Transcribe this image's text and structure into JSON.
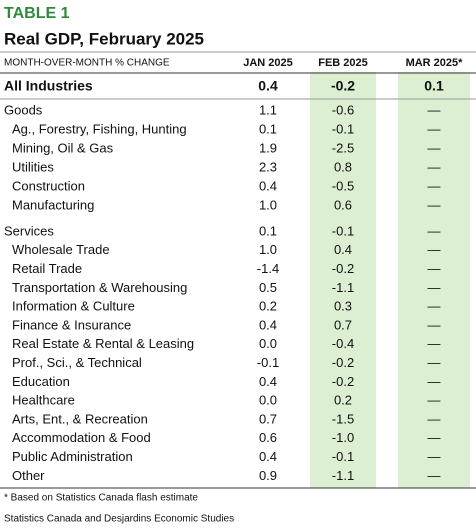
{
  "header": {
    "label": "TABLE 1",
    "title": "Real GDP, February 2025"
  },
  "table": {
    "columns": [
      "MONTH-OVER-MONTH % CHANGE",
      "JAN 2025",
      "FEB 2025",
      "MAR 2025*"
    ],
    "total": [
      "All Industries",
      "0.4",
      "-0.2",
      "0.1"
    ],
    "groups": [
      {
        "row": [
          "Goods",
          "1.1",
          "-0.6",
          "—"
        ],
        "rows": [
          [
            "Ag., Forestry, Fishing, Hunting",
            "0.1",
            "-0.1",
            "—"
          ],
          [
            "Mining, Oil & Gas",
            "1.9",
            "-2.5",
            "—"
          ],
          [
            "Utilities",
            "2.3",
            "0.8",
            "—"
          ],
          [
            "Construction",
            "0.4",
            "-0.5",
            "—"
          ],
          [
            "Manufacturing",
            "1.0",
            "0.6",
            "—"
          ]
        ]
      },
      {
        "row": [
          "Services",
          "0.1",
          "-0.1",
          "—"
        ],
        "rows": [
          [
            "Wholesale Trade",
            "1.0",
            "0.4",
            "—"
          ],
          [
            "Retail Trade",
            "-1.4",
            "-0.2",
            "—"
          ],
          [
            "Transportation & Warehousing",
            "0.5",
            "-1.1",
            "—"
          ],
          [
            "Information & Culture",
            "0.2",
            "0.3",
            "—"
          ],
          [
            "Finance & Insurance",
            "0.4",
            "0.7",
            "—"
          ],
          [
            "Real Estate & Rental & Leasing",
            "0.0",
            "-0.4",
            "—"
          ],
          [
            "Prof., Sci., & Technical",
            "-0.1",
            "-0.2",
            "—"
          ],
          [
            "Education",
            "0.4",
            "-0.2",
            "—"
          ],
          [
            "Healthcare",
            "0.0",
            "0.2",
            "—"
          ],
          [
            "Arts, Ent., & Recreation",
            "0.7",
            "-1.5",
            "—"
          ],
          [
            "Accommodation & Food",
            "0.6",
            "-1.0",
            "—"
          ],
          [
            "Public Administration",
            "0.4",
            "-0.1",
            "—"
          ],
          [
            "Other",
            "0.9",
            "-1.1",
            "—"
          ]
        ]
      }
    ]
  },
  "footer": {
    "note": "* Based on Statistics Canada flash estimate",
    "source": "Statistics Canada and Desjardins Economic Studies"
  }
}
